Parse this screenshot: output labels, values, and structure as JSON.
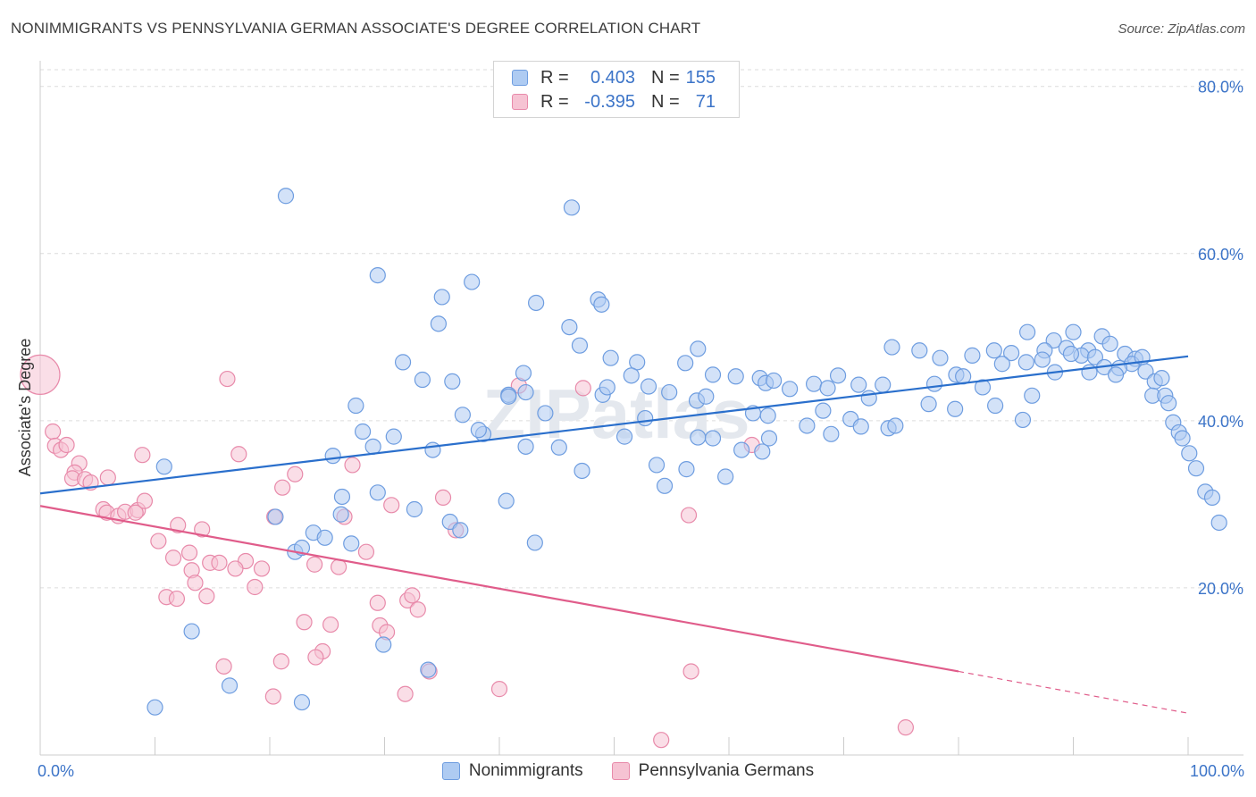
{
  "title": "NONIMMIGRANTS VS PENNSYLVANIA GERMAN ASSOCIATE'S DEGREE CORRELATION CHART",
  "source": "Source: ZipAtlas.com",
  "watermark": "ZIPatlas",
  "legend_box": {
    "rows": [
      {
        "r_label": "R =",
        "r_value": "0.403",
        "n_label": "N =",
        "n_value": "155"
      },
      {
        "r_label": "R =",
        "r_value": "-0.395",
        "n_label": "N =",
        "n_value": "71"
      }
    ]
  },
  "bottom_legend": [
    "Nonimmigrants",
    "Pennsylvania Germans"
  ],
  "colors": {
    "blue_fill": "#aecbf2",
    "blue_stroke": "#6e9de0",
    "blue_line": "#2a6fcc",
    "pink_fill": "#f6c3d3",
    "pink_stroke": "#e88aaa",
    "pink_line": "#e05c8a",
    "grid": "#dcdcdc",
    "axis_text_blue": "#3c74c8"
  },
  "chart_data": {
    "type": "scatter",
    "title": "NONIMMIGRANTS VS PENNSYLVANIA GERMAN ASSOCIATE'S DEGREE CORRELATION CHART",
    "xlabel": "",
    "ylabel": "Associate's Degree",
    "xlim": [
      0,
      100
    ],
    "ylim": [
      0,
      82
    ],
    "x_tick_labels": [
      "0.0%",
      "100.0%"
    ],
    "y_ticks": [
      20,
      40,
      60,
      80
    ],
    "y_tick_labels": [
      "20.0%",
      "40.0%",
      "60.0%",
      "80.0%"
    ],
    "grid": true,
    "legend_position": "top-center",
    "series": [
      {
        "name": "Nonimmigrants",
        "r": 0.403,
        "n": 155,
        "trend": {
          "x0": 0,
          "y0": 31.3,
          "x1": 100,
          "y1": 47.7
        },
        "points": [
          [
            21.4,
            66.9
          ],
          [
            46.3,
            65.5
          ],
          [
            29.4,
            57.4
          ],
          [
            37.6,
            56.6
          ],
          [
            35.0,
            54.8
          ],
          [
            43.2,
            54.1
          ],
          [
            48.6,
            54.5
          ],
          [
            48.9,
            53.9
          ],
          [
            34.7,
            51.6
          ],
          [
            46.1,
            51.2
          ],
          [
            47.0,
            49.0
          ],
          [
            31.6,
            47.0
          ],
          [
            42.1,
            45.7
          ],
          [
            49.7,
            47.5
          ],
          [
            52.0,
            47.0
          ],
          [
            57.3,
            48.6
          ],
          [
            56.2,
            46.9
          ],
          [
            58.6,
            45.5
          ],
          [
            51.5,
            45.4
          ],
          [
            35.9,
            44.7
          ],
          [
            33.3,
            44.9
          ],
          [
            40.8,
            43.1
          ],
          [
            42.3,
            43.4
          ],
          [
            49.0,
            43.1
          ],
          [
            53.0,
            44.1
          ],
          [
            54.8,
            43.4
          ],
          [
            57.2,
            42.4
          ],
          [
            58.0,
            42.9
          ],
          [
            60.6,
            45.3
          ],
          [
            62.7,
            45.1
          ],
          [
            63.2,
            44.5
          ],
          [
            63.9,
            44.8
          ],
          [
            65.3,
            43.8
          ],
          [
            67.4,
            44.4
          ],
          [
            69.5,
            45.4
          ],
          [
            71.3,
            44.3
          ],
          [
            74.2,
            48.8
          ],
          [
            73.4,
            44.3
          ],
          [
            72.2,
            42.7
          ],
          [
            76.6,
            48.4
          ],
          [
            78.4,
            47.5
          ],
          [
            77.9,
            44.4
          ],
          [
            79.8,
            45.5
          ],
          [
            81.2,
            47.8
          ],
          [
            83.1,
            48.4
          ],
          [
            80.4,
            45.3
          ],
          [
            82.1,
            44.0
          ],
          [
            86.0,
            50.6
          ],
          [
            84.6,
            48.1
          ],
          [
            85.9,
            47.0
          ],
          [
            83.8,
            46.8
          ],
          [
            88.3,
            49.6
          ],
          [
            87.5,
            48.4
          ],
          [
            90.0,
            50.6
          ],
          [
            89.4,
            48.7
          ],
          [
            91.3,
            48.4
          ],
          [
            90.7,
            47.8
          ],
          [
            92.5,
            50.1
          ],
          [
            93.2,
            49.2
          ],
          [
            91.9,
            47.6
          ],
          [
            94.5,
            48.0
          ],
          [
            95.4,
            47.4
          ],
          [
            95.1,
            46.8
          ],
          [
            94.0,
            46.3
          ],
          [
            92.7,
            46.4
          ],
          [
            93.7,
            45.5
          ],
          [
            96.0,
            47.6
          ],
          [
            96.3,
            45.9
          ],
          [
            97.1,
            44.7
          ],
          [
            97.7,
            45.1
          ],
          [
            96.9,
            43.0
          ],
          [
            98.0,
            43.0
          ],
          [
            98.3,
            42.1
          ],
          [
            98.7,
            39.8
          ],
          [
            99.2,
            38.6
          ],
          [
            99.5,
            37.9
          ],
          [
            100.1,
            36.1
          ],
          [
            100.7,
            34.3
          ],
          [
            101.5,
            31.5
          ],
          [
            102.1,
            30.8
          ],
          [
            102.7,
            27.8
          ],
          [
            10.8,
            34.5
          ],
          [
            25.5,
            35.8
          ],
          [
            26.3,
            30.9
          ],
          [
            28.1,
            38.7
          ],
          [
            27.5,
            41.8
          ],
          [
            29.0,
            36.9
          ],
          [
            30.8,
            38.1
          ],
          [
            34.2,
            36.5
          ],
          [
            36.8,
            40.7
          ],
          [
            38.6,
            38.4
          ],
          [
            40.8,
            42.9
          ],
          [
            42.3,
            36.9
          ],
          [
            45.2,
            36.8
          ],
          [
            47.2,
            34.0
          ],
          [
            50.9,
            38.1
          ],
          [
            53.7,
            34.7
          ],
          [
            54.4,
            32.2
          ],
          [
            56.3,
            34.2
          ],
          [
            57.3,
            38.0
          ],
          [
            58.6,
            37.9
          ],
          [
            59.7,
            33.3
          ],
          [
            61.1,
            36.5
          ],
          [
            62.1,
            40.9
          ],
          [
            62.9,
            36.3
          ],
          [
            63.5,
            37.9
          ],
          [
            66.8,
            39.4
          ],
          [
            68.2,
            41.2
          ],
          [
            68.9,
            38.4
          ],
          [
            70.6,
            40.2
          ],
          [
            71.5,
            39.3
          ],
          [
            73.9,
            39.1
          ],
          [
            74.5,
            39.4
          ],
          [
            77.4,
            42.0
          ],
          [
            79.7,
            41.4
          ],
          [
            83.2,
            41.8
          ],
          [
            85.6,
            40.1
          ],
          [
            86.4,
            43.0
          ],
          [
            88.4,
            45.8
          ],
          [
            91.4,
            45.8
          ],
          [
            20.5,
            28.5
          ],
          [
            22.2,
            24.3
          ],
          [
            22.8,
            24.8
          ],
          [
            23.8,
            26.6
          ],
          [
            24.8,
            26.0
          ],
          [
            26.2,
            28.8
          ],
          [
            27.1,
            25.3
          ],
          [
            29.4,
            31.4
          ],
          [
            32.6,
            29.4
          ],
          [
            35.7,
            27.9
          ],
          [
            36.6,
            26.9
          ],
          [
            40.6,
            30.4
          ],
          [
            43.1,
            25.4
          ],
          [
            13.2,
            14.8
          ],
          [
            16.5,
            8.3
          ],
          [
            10.0,
            5.7
          ],
          [
            22.8,
            6.3
          ],
          [
            29.9,
            13.2
          ],
          [
            33.8,
            10.2
          ],
          [
            38.2,
            38.9
          ],
          [
            44.0,
            40.9
          ],
          [
            49.4,
            44.0
          ],
          [
            63.4,
            40.6
          ],
          [
            68.6,
            43.9
          ],
          [
            87.3,
            47.3
          ],
          [
            89.8,
            48.0
          ],
          [
            52.7,
            40.3
          ]
        ]
      },
      {
        "name": "Pennsylvania Germans",
        "r": -0.395,
        "n": 71,
        "trend": {
          "x0": 0,
          "y0": 29.8,
          "x1": 80,
          "y1": 10.0
        },
        "trend_dashed_to": {
          "x": 100,
          "y": 5.0
        },
        "points": [
          [
            0.0,
            45.5
          ],
          [
            1.1,
            38.7
          ],
          [
            1.3,
            37.0
          ],
          [
            1.8,
            36.5
          ],
          [
            2.3,
            37.1
          ],
          [
            3.4,
            34.9
          ],
          [
            3.0,
            33.8
          ],
          [
            2.8,
            33.1
          ],
          [
            3.9,
            33.0
          ],
          [
            5.9,
            33.2
          ],
          [
            4.4,
            32.6
          ],
          [
            5.5,
            29.4
          ],
          [
            5.8,
            29.0
          ],
          [
            6.8,
            28.6
          ],
          [
            7.4,
            29.1
          ],
          [
            8.5,
            29.3
          ],
          [
            8.3,
            29.0
          ],
          [
            9.1,
            30.4
          ],
          [
            8.9,
            35.9
          ],
          [
            12.0,
            27.5
          ],
          [
            10.3,
            25.6
          ],
          [
            11.6,
            23.6
          ],
          [
            13.2,
            22.1
          ],
          [
            13.0,
            24.2
          ],
          [
            14.1,
            27.0
          ],
          [
            14.8,
            23.0
          ],
          [
            13.5,
            20.6
          ],
          [
            14.5,
            19.0
          ],
          [
            15.6,
            23.0
          ],
          [
            11.0,
            18.9
          ],
          [
            11.9,
            18.7
          ],
          [
            17.9,
            23.2
          ],
          [
            17.0,
            22.3
          ],
          [
            18.7,
            20.1
          ],
          [
            19.3,
            22.3
          ],
          [
            20.4,
            28.5
          ],
          [
            21.1,
            32.0
          ],
          [
            22.2,
            33.6
          ],
          [
            23.9,
            22.8
          ],
          [
            26.0,
            22.5
          ],
          [
            26.5,
            28.5
          ],
          [
            27.2,
            34.7
          ],
          [
            28.4,
            24.3
          ],
          [
            29.4,
            18.2
          ],
          [
            29.6,
            15.5
          ],
          [
            30.2,
            14.7
          ],
          [
            30.6,
            29.9
          ],
          [
            32.0,
            18.5
          ],
          [
            32.4,
            19.1
          ],
          [
            32.9,
            17.4
          ],
          [
            33.9,
            10.0
          ],
          [
            35.1,
            30.8
          ],
          [
            36.2,
            26.9
          ],
          [
            40.0,
            7.9
          ],
          [
            41.7,
            44.2
          ],
          [
            47.3,
            43.9
          ],
          [
            56.5,
            28.7
          ],
          [
            56.7,
            10.0
          ],
          [
            54.1,
            1.8
          ],
          [
            62.0,
            37.1
          ],
          [
            16.0,
            10.6
          ],
          [
            16.3,
            45.0
          ],
          [
            17.3,
            36.0
          ],
          [
            20.3,
            7.0
          ],
          [
            21.0,
            11.2
          ],
          [
            24.6,
            12.4
          ],
          [
            23.0,
            15.9
          ],
          [
            24.0,
            11.7
          ],
          [
            25.3,
            15.6
          ],
          [
            31.8,
            7.3
          ],
          [
            75.4,
            3.3
          ]
        ]
      }
    ]
  }
}
